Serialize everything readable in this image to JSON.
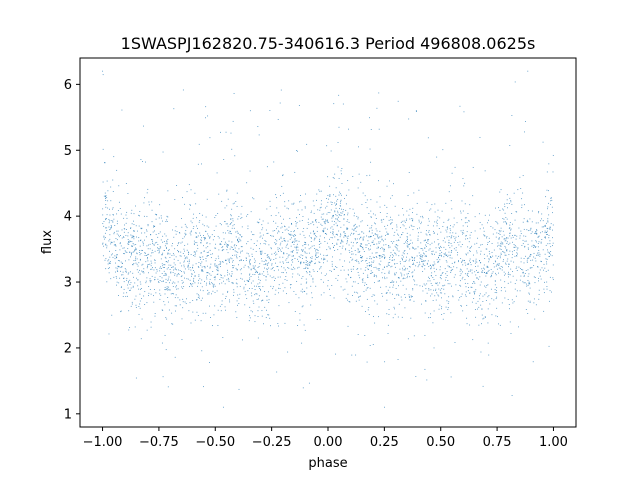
{
  "chart_data": {
    "type": "scatter",
    "title": "1SWASPJ162820.75-340616.3 Period 496808.0625s",
    "xlabel": "phase",
    "ylabel": "flux",
    "xlim": [
      -1.1,
      1.1
    ],
    "ylim": [
      0.8,
      6.4
    ],
    "grid": false,
    "legend": "none",
    "marker_color": "#1f77b4",
    "x_ticks": [
      -1.0,
      -0.75,
      -0.5,
      -0.25,
      0.0,
      0.25,
      0.5,
      0.75,
      1.0
    ],
    "x_tick_labels": [
      "−1.00",
      "−0.75",
      "−0.50",
      "−0.25",
      "0.00",
      "0.25",
      "0.50",
      "0.75",
      "1.00"
    ],
    "y_ticks": [
      1,
      2,
      3,
      4,
      5,
      6
    ],
    "y_tick_labels": [
      "1",
      "2",
      "3",
      "4",
      "5",
      "6"
    ],
    "series": [
      {
        "phase_range": [
          -1.0,
          1.0
        ],
        "base_flux": 3.5,
        "flux_min": 1.1,
        "flux_max": 6.2,
        "trend": [
          {
            "x": -1.0,
            "y": 3.9
          },
          {
            "x": -0.95,
            "y": 3.6
          },
          {
            "x": -0.9,
            "y": 3.3
          },
          {
            "x": -0.8,
            "y": 3.4
          },
          {
            "x": -0.7,
            "y": 3.2
          },
          {
            "x": -0.6,
            "y": 3.4
          },
          {
            "x": -0.5,
            "y": 3.3
          },
          {
            "x": -0.4,
            "y": 3.4
          },
          {
            "x": -0.3,
            "y": 3.1
          },
          {
            "x": -0.2,
            "y": 3.6
          },
          {
            "x": -0.1,
            "y": 3.3
          },
          {
            "x": 0.0,
            "y": 3.8
          },
          {
            "x": 0.05,
            "y": 3.9
          },
          {
            "x": 0.1,
            "y": 3.5
          },
          {
            "x": 0.2,
            "y": 3.4
          },
          {
            "x": 0.3,
            "y": 3.3
          },
          {
            "x": 0.4,
            "y": 3.4
          },
          {
            "x": 0.5,
            "y": 3.3
          },
          {
            "x": 0.6,
            "y": 3.4
          },
          {
            "x": 0.7,
            "y": 3.1
          },
          {
            "x": 0.8,
            "y": 3.6
          },
          {
            "x": 0.9,
            "y": 3.4
          },
          {
            "x": 1.0,
            "y": 3.8
          }
        ]
      }
    ]
  }
}
